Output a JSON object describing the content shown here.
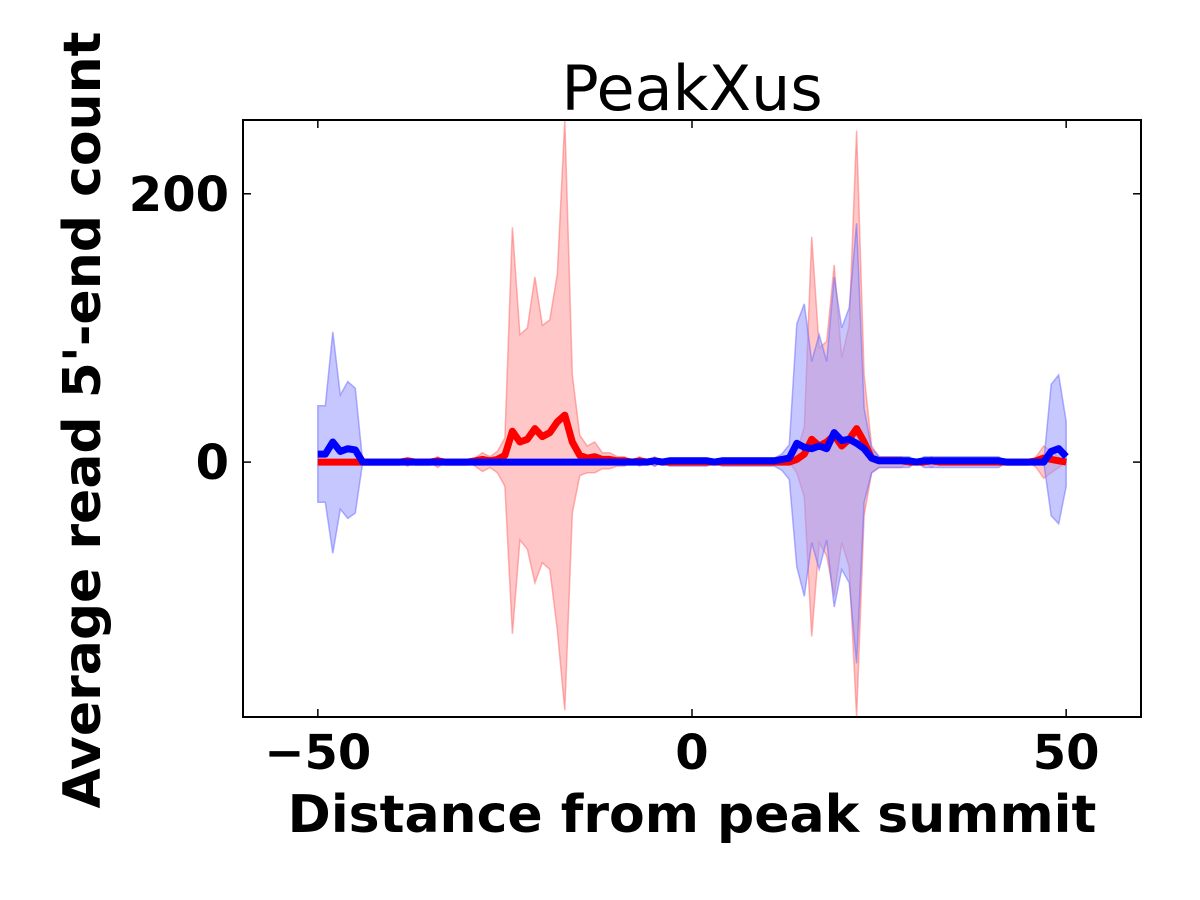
{
  "chart_data": {
    "type": "line",
    "title": "PeakXus",
    "xlabel": "Distance from peak summit",
    "ylabel": "Average read 5'-end count",
    "xlim": [
      -60,
      60
    ],
    "ylim": [
      -190,
      255
    ],
    "xticks": [
      -50,
      0,
      50
    ],
    "xtick_labels": [
      "−50",
      "0",
      "50"
    ],
    "yticks": [
      0,
      200
    ],
    "ytick_labels": [
      "0",
      "200"
    ],
    "grid": false,
    "legend": "none",
    "colors": {
      "red_line": "#ff0000",
      "red_band": "#ff9999",
      "blue_line": "#0000ff",
      "blue_band": "#9999ff",
      "overlap": "#a36bbd"
    },
    "x": [
      -50,
      -49,
      -48,
      -47,
      -46,
      -45,
      -44,
      -43,
      -42,
      -41,
      -40,
      -39,
      -38,
      -37,
      -36,
      -35,
      -34,
      -33,
      -32,
      -31,
      -30,
      -29,
      -28,
      -27,
      -26,
      -25,
      -24,
      -23,
      -22,
      -21,
      -20,
      -19,
      -18,
      -17,
      -16,
      -15,
      -14,
      -13,
      -12,
      -11,
      -10,
      -9,
      -8,
      -7,
      -6,
      -5,
      -4,
      -3,
      -2,
      -1,
      0,
      1,
      2,
      3,
      4,
      5,
      6,
      7,
      8,
      9,
      10,
      11,
      12,
      13,
      14,
      15,
      16,
      17,
      18,
      19,
      20,
      21,
      22,
      23,
      24,
      25,
      26,
      27,
      28,
      29,
      30,
      31,
      32,
      33,
      34,
      35,
      36,
      37,
      38,
      39,
      40,
      41,
      42,
      43,
      44,
      45,
      46,
      47,
      48,
      49,
      50
    ],
    "series": [
      {
        "color": "red",
        "values": [
          0,
          0,
          0,
          0,
          0,
          0,
          0,
          0,
          0,
          0,
          0,
          0,
          1,
          0,
          0,
          0,
          1,
          0,
          0,
          0,
          0,
          1,
          2,
          1,
          2,
          5,
          23,
          15,
          17,
          25,
          19,
          22,
          30,
          35,
          15,
          5,
          3,
          4,
          2,
          2,
          1,
          1,
          0,
          1,
          0,
          1,
          0,
          0,
          0,
          0,
          0,
          0,
          0,
          0,
          0,
          0,
          0,
          0,
          0,
          0,
          0,
          0,
          0,
          0,
          2,
          6,
          17,
          12,
          15,
          20,
          12,
          17,
          25,
          15,
          3,
          1,
          1,
          1,
          1,
          0,
          0,
          0,
          1,
          0,
          0,
          0,
          0,
          0,
          0,
          0,
          0,
          0,
          0,
          0,
          0,
          0,
          1,
          3,
          2,
          1,
          0
        ],
        "upper": [
          0,
          0,
          0,
          0,
          0,
          0,
          0,
          0,
          0,
          0,
          0,
          0,
          3,
          0,
          0,
          0,
          4,
          0,
          0,
          0,
          0,
          3,
          7,
          4,
          8,
          18,
          175,
          95,
          100,
          138,
          102,
          106,
          140,
          255,
          65,
          20,
          12,
          15,
          7,
          7,
          4,
          4,
          0,
          4,
          0,
          4,
          0,
          0,
          0,
          0,
          0,
          0,
          0,
          0,
          0,
          0,
          0,
          0,
          0,
          0,
          0,
          0,
          0,
          0,
          8,
          26,
          168,
          85,
          90,
          147,
          78,
          102,
          247,
          65,
          12,
          4,
          4,
          4,
          4,
          0,
          0,
          0,
          4,
          0,
          0,
          0,
          0,
          0,
          0,
          0,
          0,
          0,
          0,
          0,
          0,
          0,
          4,
          12,
          8,
          4,
          0
        ],
        "lower": [
          0,
          0,
          0,
          0,
          0,
          0,
          0,
          0,
          0,
          0,
          0,
          0,
          -3,
          0,
          0,
          0,
          -4,
          0,
          0,
          0,
          0,
          -3,
          -7,
          -4,
          -8,
          -18,
          -128,
          -58,
          -65,
          -90,
          -75,
          -80,
          -125,
          -185,
          -38,
          -10,
          -8,
          -8,
          -5,
          -5,
          -3,
          -3,
          0,
          -3,
          0,
          -3,
          0,
          0,
          0,
          0,
          0,
          0,
          0,
          0,
          0,
          0,
          0,
          0,
          0,
          0,
          0,
          0,
          0,
          0,
          -8,
          -26,
          -130,
          -60,
          -70,
          -100,
          -60,
          -78,
          -190,
          -40,
          -8,
          -4,
          -4,
          -4,
          -4,
          0,
          0,
          0,
          -4,
          0,
          0,
          0,
          0,
          0,
          0,
          0,
          0,
          0,
          0,
          0,
          0,
          0,
          -4,
          -12,
          -8,
          -4,
          0
        ]
      },
      {
        "color": "blue",
        "values": [
          6,
          6,
          15,
          8,
          10,
          9,
          0,
          0,
          0,
          0,
          0,
          0,
          0,
          0,
          0,
          0,
          0,
          0,
          0,
          0,
          0,
          0,
          0,
          0,
          0,
          0,
          0,
          0,
          0,
          0,
          0,
          0,
          0,
          0,
          0,
          0,
          0,
          0,
          0,
          0,
          0,
          0,
          0,
          0,
          0,
          1,
          0,
          1,
          1,
          1,
          1,
          1,
          1,
          0,
          1,
          1,
          1,
          1,
          1,
          1,
          1,
          1,
          2,
          3,
          14,
          11,
          10,
          12,
          10,
          22,
          16,
          17,
          14,
          10,
          3,
          1,
          1,
          1,
          1,
          1,
          0,
          1,
          1,
          1,
          1,
          1,
          1,
          1,
          1,
          1,
          1,
          1,
          0,
          0,
          0,
          0,
          0,
          0,
          8,
          10,
          4
        ],
        "upper": [
          42,
          42,
          97,
          50,
          60,
          55,
          0,
          0,
          0,
          0,
          0,
          0,
          0,
          0,
          0,
          0,
          0,
          0,
          0,
          0,
          0,
          0,
          0,
          0,
          0,
          0,
          0,
          0,
          0,
          0,
          0,
          0,
          0,
          0,
          0,
          0,
          0,
          0,
          0,
          0,
          0,
          0,
          0,
          0,
          0,
          3,
          0,
          3,
          3,
          3,
          3,
          3,
          3,
          0,
          3,
          3,
          3,
          3,
          3,
          3,
          3,
          3,
          6,
          13,
          103,
          118,
          75,
          95,
          75,
          138,
          100,
          115,
          178,
          40,
          10,
          4,
          4,
          4,
          4,
          4,
          0,
          4,
          4,
          4,
          4,
          4,
          4,
          4,
          4,
          4,
          4,
          4,
          0,
          0,
          0,
          0,
          0,
          0,
          58,
          65,
          30
        ],
        "lower": [
          -30,
          -30,
          -68,
          -35,
          -42,
          -38,
          0,
          0,
          0,
          0,
          0,
          0,
          0,
          0,
          0,
          0,
          0,
          0,
          0,
          0,
          0,
          0,
          0,
          0,
          0,
          0,
          0,
          0,
          0,
          0,
          0,
          0,
          0,
          0,
          0,
          0,
          0,
          0,
          0,
          0,
          0,
          0,
          0,
          0,
          0,
          -3,
          0,
          -3,
          -3,
          -3,
          -3,
          -3,
          -3,
          0,
          -3,
          -3,
          -3,
          -3,
          -3,
          -3,
          -3,
          -3,
          -6,
          -13,
          -78,
          -100,
          -60,
          -80,
          -58,
          -108,
          -80,
          -90,
          -150,
          -30,
          -8,
          -4,
          -4,
          -4,
          -4,
          -4,
          0,
          -4,
          -4,
          -4,
          -4,
          -4,
          -4,
          -4,
          -4,
          -4,
          -4,
          -4,
          0,
          0,
          0,
          0,
          0,
          0,
          -40,
          -46,
          -18
        ]
      }
    ]
  }
}
